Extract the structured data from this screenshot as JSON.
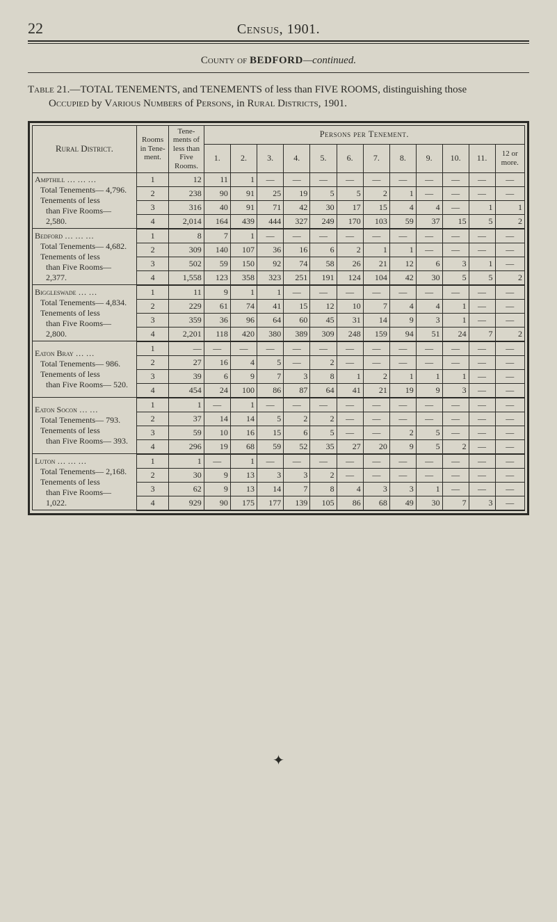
{
  "page_number": "22",
  "running_title": "Census, 1901.",
  "county_line_prefix": "County of ",
  "county_line_bold": "BEDFORD",
  "county_line_suffix": "—continued.",
  "table_title_html": "Table 21.—TOTAL TENEMENTS, and TENEMENTS of less than FIVE ROOMS, distinguishing those Occupied by Various Numbers of Persons, in Rural Districts, 1901.",
  "headers": {
    "district": "Rural District.",
    "rooms": "Rooms in Tene- ment.",
    "tenements": "Tene- ments of less than Five Rooms.",
    "persons": "Persons per Tenement.",
    "cols": [
      "1.",
      "2.",
      "3.",
      "4.",
      "5.",
      "6.",
      "7.",
      "8.",
      "9.",
      "10.",
      "11."
    ],
    "more": "12 or more."
  },
  "dash": "—",
  "groups": [
    {
      "district_lines": [
        {
          "cls": "main",
          "text": "Ampthill   …   …   …"
        },
        {
          "cls": "sub",
          "text": "Total Tenements— 4,796."
        },
        {
          "cls": "sub",
          "text": "Tenements of less"
        },
        {
          "cls": "subsub",
          "text": "than Five Rooms— 2,580."
        }
      ],
      "rows": [
        {
          "rooms": "1",
          "tene": "12",
          "v": [
            "11",
            "1",
            "—",
            "—",
            "—",
            "—",
            "—",
            "—",
            "—",
            "—",
            "—",
            "—"
          ]
        },
        {
          "rooms": "2",
          "tene": "238",
          "v": [
            "90",
            "91",
            "25",
            "19",
            "5",
            "5",
            "2",
            "1",
            "—",
            "—",
            "—",
            "—"
          ]
        },
        {
          "rooms": "3",
          "tene": "316",
          "v": [
            "40",
            "91",
            "71",
            "42",
            "30",
            "17",
            "15",
            "4",
            "4",
            "—",
            "1",
            "1"
          ]
        },
        {
          "rooms": "4",
          "tene": "2,014",
          "v": [
            "164",
            "439",
            "444",
            "327",
            "249",
            "170",
            "103",
            "59",
            "37",
            "15",
            "5",
            "2"
          ]
        }
      ]
    },
    {
      "district_lines": [
        {
          "cls": "main",
          "text": "Bedford   …   …   …"
        },
        {
          "cls": "sub",
          "text": "Total Tenements— 4,682."
        },
        {
          "cls": "sub",
          "text": "Tenements of less"
        },
        {
          "cls": "subsub",
          "text": "than Five Rooms— 2,377."
        }
      ],
      "rows": [
        {
          "rooms": "1",
          "tene": "8",
          "v": [
            "7",
            "1",
            "—",
            "—",
            "—",
            "—",
            "—",
            "—",
            "—",
            "—",
            "—",
            "—"
          ]
        },
        {
          "rooms": "2",
          "tene": "309",
          "v": [
            "140",
            "107",
            "36",
            "16",
            "6",
            "2",
            "1",
            "1",
            "—",
            "—",
            "—",
            "—"
          ]
        },
        {
          "rooms": "3",
          "tene": "502",
          "v": [
            "59",
            "150",
            "92",
            "74",
            "58",
            "26",
            "21",
            "12",
            "6",
            "3",
            "1",
            "—"
          ]
        },
        {
          "rooms": "4",
          "tene": "1,558",
          "v": [
            "123",
            "358",
            "323",
            "251",
            "191",
            "124",
            "104",
            "42",
            "30",
            "5",
            "5",
            "2"
          ]
        }
      ]
    },
    {
      "district_lines": [
        {
          "cls": "main",
          "text": "Biggleswade   …   …"
        },
        {
          "cls": "sub",
          "text": "Total Tenements— 4,834."
        },
        {
          "cls": "sub",
          "text": "Tenements of less"
        },
        {
          "cls": "subsub",
          "text": "than Five Rooms— 2,800."
        }
      ],
      "rows": [
        {
          "rooms": "1",
          "tene": "11",
          "v": [
            "9",
            "1",
            "1",
            "—",
            "—",
            "—",
            "—",
            "—",
            "—",
            "—",
            "—",
            "—"
          ]
        },
        {
          "rooms": "2",
          "tene": "229",
          "v": [
            "61",
            "74",
            "41",
            "15",
            "12",
            "10",
            "7",
            "4",
            "4",
            "1",
            "—",
            "—"
          ]
        },
        {
          "rooms": "3",
          "tene": "359",
          "v": [
            "36",
            "96",
            "64",
            "60",
            "45",
            "31",
            "14",
            "9",
            "3",
            "1",
            "—",
            "—"
          ]
        },
        {
          "rooms": "4",
          "tene": "2,201",
          "v": [
            "118",
            "420",
            "380",
            "389",
            "309",
            "248",
            "159",
            "94",
            "51",
            "24",
            "7",
            "2"
          ]
        }
      ]
    },
    {
      "district_lines": [
        {
          "cls": "main",
          "text": "Eaton Bray   …   …"
        },
        {
          "cls": "sub",
          "text": "Total Tenements—   986."
        },
        {
          "cls": "sub",
          "text": "Tenements of less"
        },
        {
          "cls": "subsub",
          "text": "than Five Rooms—   520."
        }
      ],
      "rows": [
        {
          "rooms": "1",
          "tene": "—",
          "v": [
            "—",
            "—",
            "—",
            "—",
            "—",
            "—",
            "—",
            "—",
            "—",
            "—",
            "—",
            "—"
          ]
        },
        {
          "rooms": "2",
          "tene": "27",
          "v": [
            "16",
            "4",
            "5",
            "—",
            "2",
            "—",
            "—",
            "—",
            "—",
            "—",
            "—",
            "—"
          ]
        },
        {
          "rooms": "3",
          "tene": "39",
          "v": [
            "6",
            "9",
            "7",
            "3",
            "8",
            "1",
            "2",
            "1",
            "1",
            "1",
            "—",
            "—"
          ]
        },
        {
          "rooms": "4",
          "tene": "454",
          "v": [
            "24",
            "100",
            "86",
            "87",
            "64",
            "41",
            "21",
            "19",
            "9",
            "3",
            "—",
            "—"
          ]
        }
      ]
    },
    {
      "district_lines": [
        {
          "cls": "main",
          "text": "Eaton Socon   …   …"
        },
        {
          "cls": "sub",
          "text": "Total Tenements—   793."
        },
        {
          "cls": "sub",
          "text": "Tenements of less"
        },
        {
          "cls": "subsub",
          "text": "than Five Rooms—   393."
        }
      ],
      "rows": [
        {
          "rooms": "1",
          "tene": "1",
          "v": [
            "—",
            "1",
            "—",
            "—",
            "—",
            "—",
            "—",
            "—",
            "—",
            "—",
            "—",
            "—"
          ]
        },
        {
          "rooms": "2",
          "tene": "37",
          "v": [
            "14",
            "14",
            "5",
            "2",
            "2",
            "—",
            "—",
            "—",
            "—",
            "—",
            "—",
            "—"
          ]
        },
        {
          "rooms": "3",
          "tene": "59",
          "v": [
            "10",
            "16",
            "15",
            "6",
            "5",
            "—",
            "—",
            "2",
            "5",
            "—",
            "—",
            "—"
          ]
        },
        {
          "rooms": "4",
          "tene": "296",
          "v": [
            "19",
            "68",
            "59",
            "52",
            "35",
            "27",
            "20",
            "9",
            "5",
            "2",
            "—",
            "—"
          ]
        }
      ]
    },
    {
      "district_lines": [
        {
          "cls": "main",
          "text": "Luton   …   …   …"
        },
        {
          "cls": "sub",
          "text": "Total Tenements— 2,168."
        },
        {
          "cls": "sub",
          "text": "Tenements of less"
        },
        {
          "cls": "subsub",
          "text": "than Five Rooms— 1,022."
        }
      ],
      "rows": [
        {
          "rooms": "1",
          "tene": "1",
          "v": [
            "—",
            "1",
            "—",
            "—",
            "—",
            "—",
            "—",
            "—",
            "—",
            "—",
            "—",
            "—"
          ]
        },
        {
          "rooms": "2",
          "tene": "30",
          "v": [
            "9",
            "13",
            "3",
            "3",
            "2",
            "—",
            "—",
            "—",
            "—",
            "—",
            "—",
            "—"
          ]
        },
        {
          "rooms": "3",
          "tene": "62",
          "v": [
            "9",
            "13",
            "14",
            "7",
            "8",
            "4",
            "3",
            "3",
            "1",
            "—",
            "—",
            "—"
          ]
        },
        {
          "rooms": "4",
          "tene": "929",
          "v": [
            "90",
            "175",
            "177",
            "139",
            "105",
            "86",
            "68",
            "49",
            "30",
            "7",
            "3",
            "—"
          ]
        }
      ]
    }
  ]
}
